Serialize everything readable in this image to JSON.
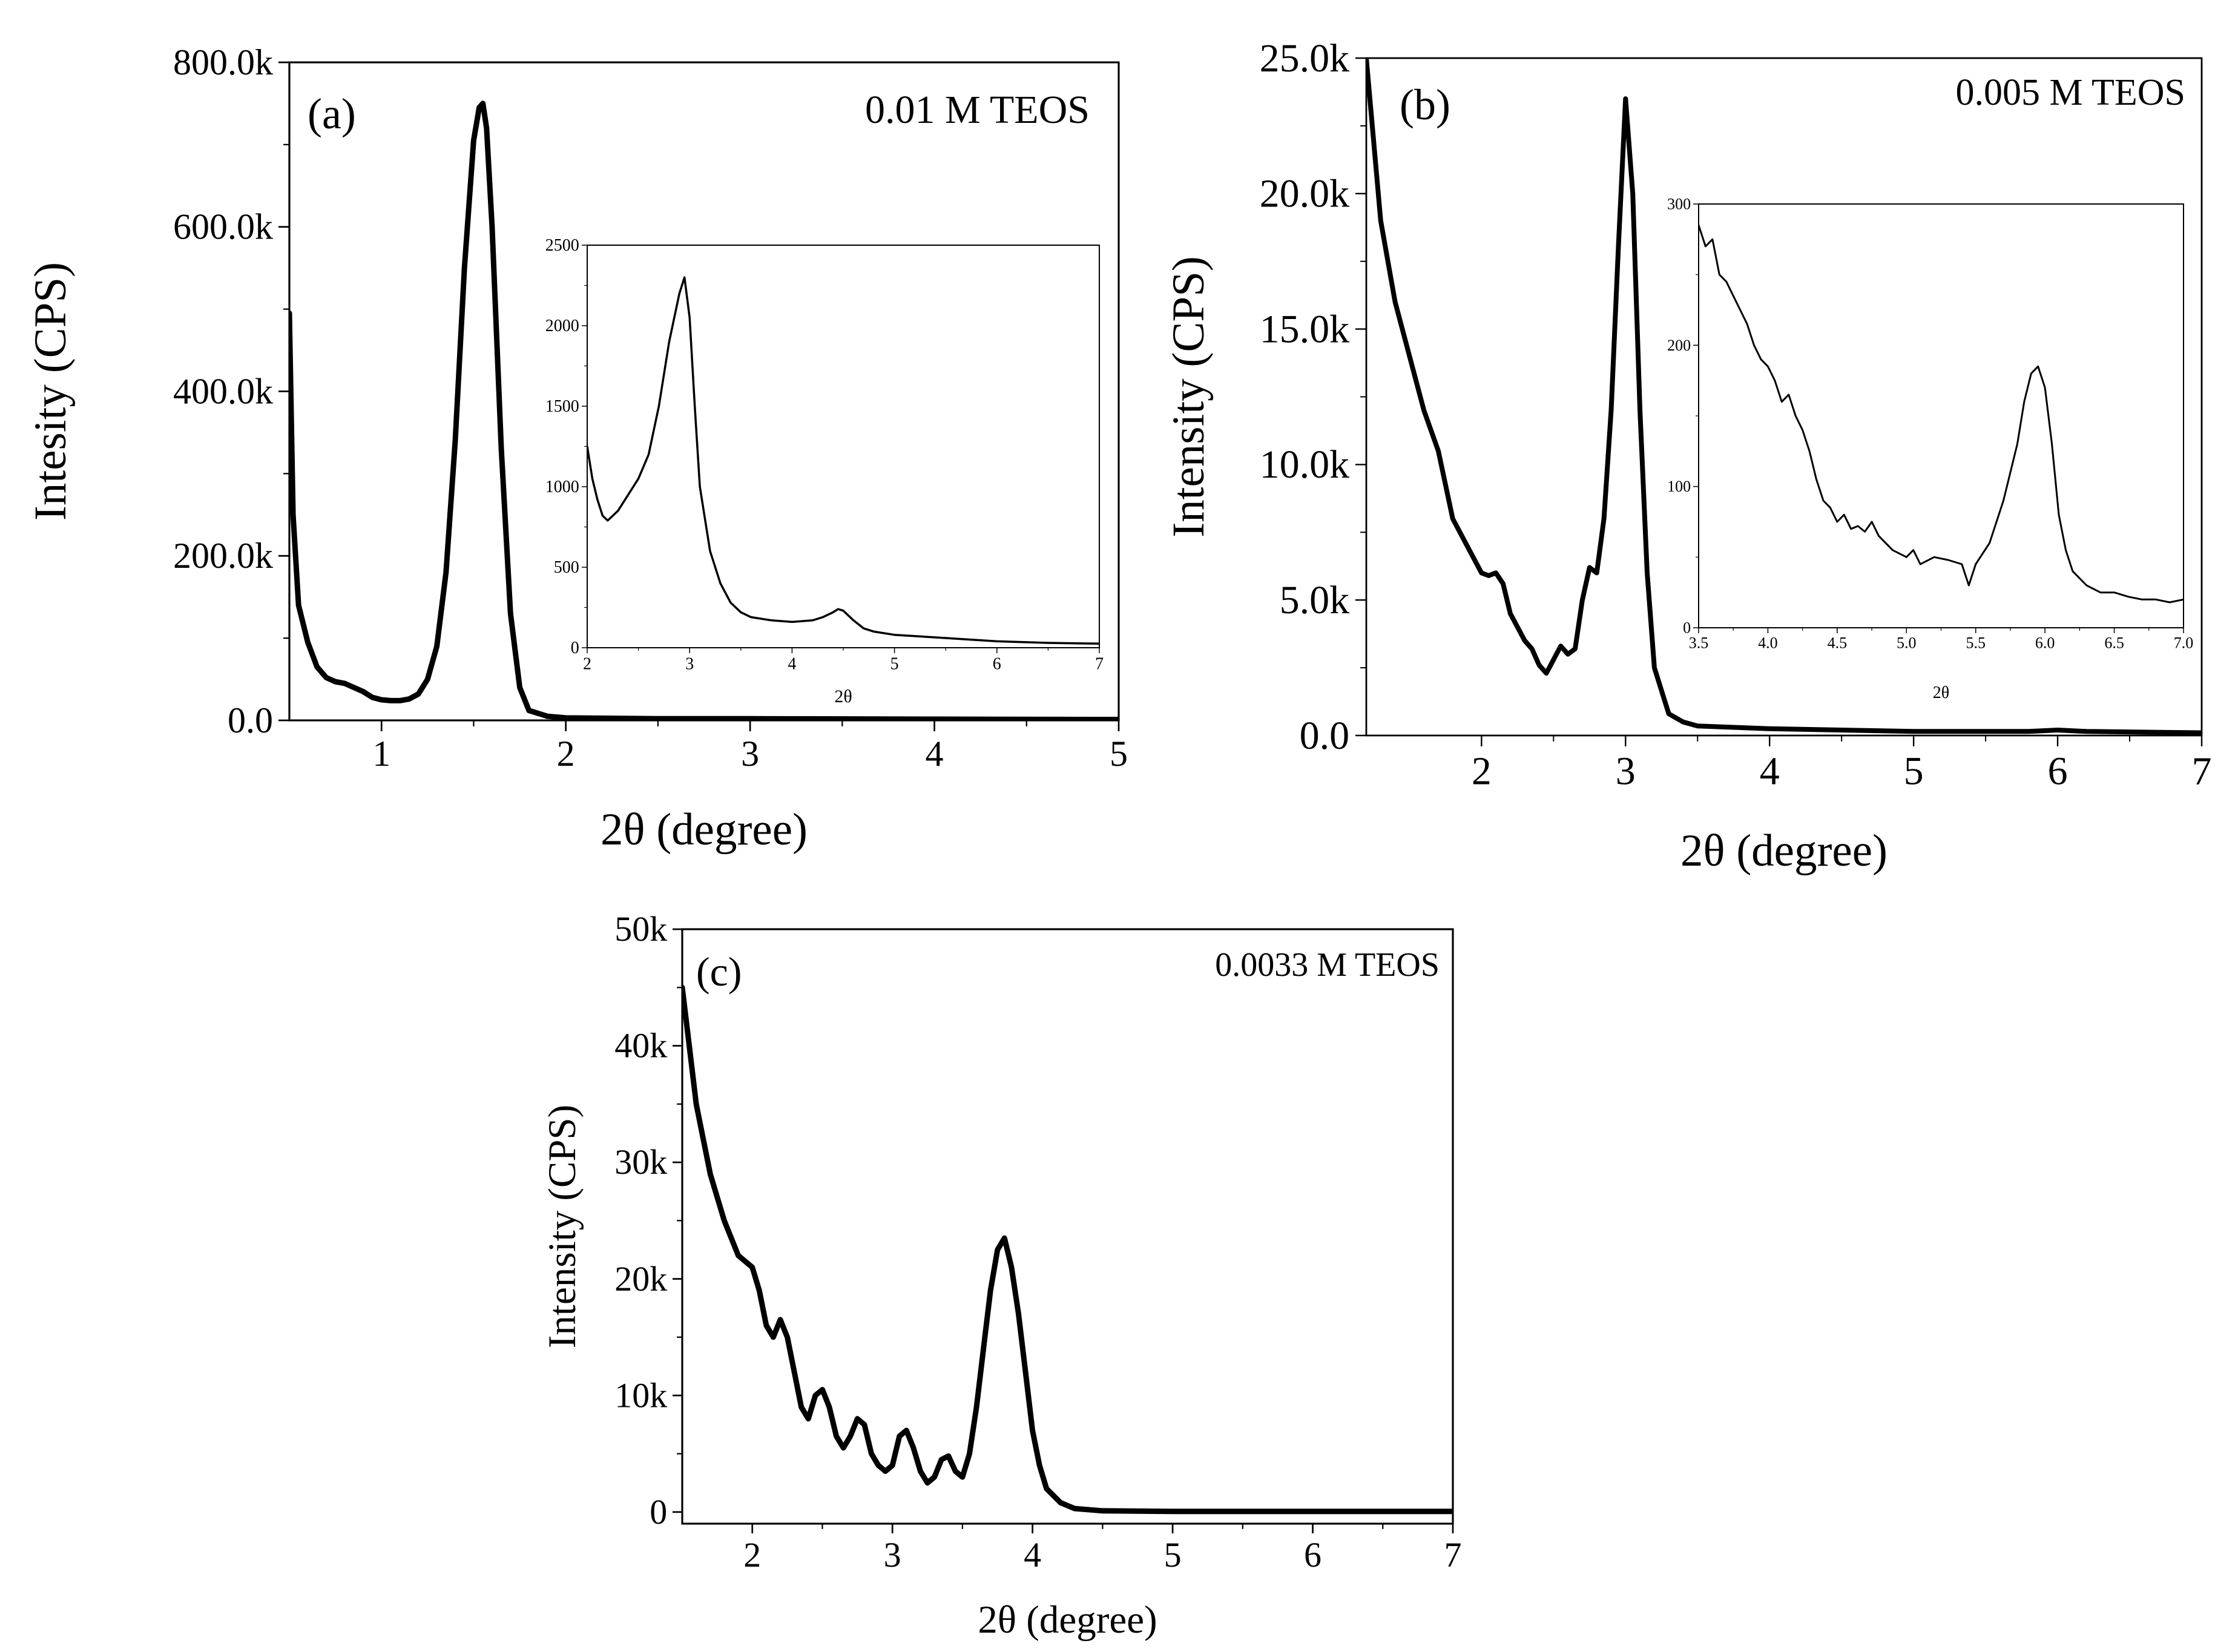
{
  "figure": {
    "colors": {
      "line": "#000000",
      "background": "#ffffff"
    }
  },
  "chart_data": [
    {
      "id": "a",
      "type": "line",
      "panel_label": "(a)",
      "annotation": "0.01 M TEOS",
      "xlabel": "2θ (degree)",
      "ylabel": "Intesity (CPS)",
      "xlim": [
        0.5,
        5
      ],
      "ylim": [
        0,
        800000
      ],
      "xticks": [
        1,
        2,
        3,
        4,
        5
      ],
      "xtick_labels": [
        "1",
        "2",
        "3",
        "4",
        "5"
      ],
      "yticks": [
        0,
        200000,
        400000,
        600000,
        800000
      ],
      "ytick_labels": [
        "0.0",
        "200.0k",
        "400.0k",
        "600.0k",
        "800.0k"
      ],
      "series": [
        {
          "name": "0.01 M TEOS",
          "x": [
            0.5,
            0.52,
            0.55,
            0.6,
            0.65,
            0.7,
            0.75,
            0.8,
            0.85,
            0.9,
            0.95,
            1.0,
            1.05,
            1.1,
            1.15,
            1.2,
            1.25,
            1.3,
            1.35,
            1.4,
            1.45,
            1.5,
            1.53,
            1.55,
            1.57,
            1.6,
            1.65,
            1.7,
            1.75,
            1.8,
            1.9,
            2.0,
            2.5,
            3.0,
            4.0,
            5.0
          ],
          "y": [
            495000,
            250000,
            140000,
            95000,
            65000,
            52000,
            47000,
            45000,
            40000,
            35000,
            28000,
            25000,
            24000,
            24000,
            26000,
            32000,
            50000,
            90000,
            180000,
            340000,
            550000,
            705000,
            745000,
            750000,
            720000,
            600000,
            330000,
            130000,
            40000,
            12000,
            5000,
            3000,
            2000,
            2000,
            1500,
            1000
          ]
        }
      ],
      "inset": {
        "xlabel": "2θ",
        "ylabel": "",
        "xlim": [
          2,
          7
        ],
        "ylim": [
          0,
          2500
        ],
        "xticks": [
          2,
          3,
          4,
          5,
          6,
          7
        ],
        "xtick_labels": [
          "2",
          "3",
          "4",
          "5",
          "6",
          "7"
        ],
        "yticks": [
          0,
          500,
          1000,
          1500,
          2000,
          2500
        ],
        "ytick_labels": [
          "0",
          "500",
          "1000",
          "1500",
          "2000",
          "2500"
        ],
        "series": [
          {
            "name": "inset",
            "x": [
              2.0,
              2.05,
              2.1,
              2.15,
              2.2,
              2.3,
              2.4,
              2.5,
              2.6,
              2.7,
              2.8,
              2.9,
              2.95,
              3.0,
              3.05,
              3.1,
              3.2,
              3.3,
              3.4,
              3.5,
              3.6,
              3.8,
              4.0,
              4.2,
              4.3,
              4.4,
              4.45,
              4.5,
              4.6,
              4.7,
              4.8,
              5.0,
              5.5,
              6.0,
              6.5,
              7.0
            ],
            "y": [
              1250,
              1050,
              920,
              820,
              790,
              850,
              950,
              1050,
              1200,
              1500,
              1900,
              2200,
              2300,
              2050,
              1500,
              1000,
              600,
              400,
              280,
              220,
              190,
              170,
              160,
              170,
              190,
              220,
              240,
              230,
              170,
              120,
              100,
              80,
              60,
              40,
              30,
              25
            ]
          }
        ]
      }
    },
    {
      "id": "b",
      "type": "line",
      "panel_label": "(b)",
      "annotation": "0.005 M TEOS",
      "xlabel": "2θ (degree)",
      "ylabel": "Intensity (CPS)",
      "xlim": [
        1.2,
        7
      ],
      "ylim": [
        0,
        25000
      ],
      "xticks": [
        2,
        3,
        4,
        5,
        6,
        7
      ],
      "xtick_labels": [
        "2",
        "3",
        "4",
        "5",
        "6",
        "7"
      ],
      "yticks": [
        0,
        5000,
        10000,
        15000,
        20000,
        25000
      ],
      "ytick_labels": [
        "0.0",
        "5.0k",
        "10.0k",
        "15.0k",
        "20.0k",
        "25.0k"
      ],
      "series": [
        {
          "name": "0.005 M TEOS",
          "x": [
            1.2,
            1.25,
            1.3,
            1.4,
            1.5,
            1.6,
            1.7,
            1.8,
            1.9,
            2.0,
            2.05,
            2.1,
            2.15,
            2.2,
            2.3,
            2.35,
            2.4,
            2.45,
            2.5,
            2.55,
            2.6,
            2.65,
            2.7,
            2.75,
            2.8,
            2.85,
            2.9,
            2.95,
            3.0,
            3.05,
            3.1,
            3.15,
            3.2,
            3.3,
            3.4,
            3.5,
            4.0,
            5.0,
            5.8,
            6.0,
            6.2,
            7.0
          ],
          "y": [
            25000,
            22000,
            19000,
            16000,
            14000,
            12000,
            10500,
            8000,
            7000,
            6000,
            5900,
            6000,
            5600,
            4500,
            3500,
            3200,
            2600,
            2300,
            2800,
            3300,
            3000,
            3200,
            5000,
            6200,
            6000,
            8000,
            12000,
            18000,
            23500,
            20000,
            12000,
            6000,
            2500,
            800,
            500,
            350,
            250,
            150,
            150,
            200,
            150,
            100
          ]
        }
      ],
      "inset": {
        "xlabel": "2θ",
        "ylabel": "",
        "xlim": [
          3.5,
          7.0
        ],
        "ylim": [
          0,
          300
        ],
        "xticks": [
          3.5,
          4.0,
          4.5,
          5.0,
          5.5,
          6.0,
          6.5,
          7.0
        ],
        "xtick_labels": [
          "3.5",
          "4.0",
          "4.5",
          "5.0",
          "5.5",
          "6.0",
          "6.5",
          "7.0"
        ],
        "yticks": [
          0,
          100,
          200,
          300
        ],
        "ytick_labels": [
          "0",
          "100",
          "200",
          "300"
        ],
        "series": [
          {
            "name": "inset",
            "x": [
              3.5,
              3.55,
              3.6,
              3.65,
              3.7,
              3.75,
              3.8,
              3.85,
              3.9,
              3.95,
              4.0,
              4.05,
              4.1,
              4.15,
              4.2,
              4.25,
              4.3,
              4.35,
              4.4,
              4.45,
              4.5,
              4.55,
              4.6,
              4.65,
              4.7,
              4.75,
              4.8,
              4.9,
              5.0,
              5.05,
              5.1,
              5.2,
              5.3,
              5.4,
              5.45,
              5.5,
              5.6,
              5.7,
              5.8,
              5.85,
              5.9,
              5.95,
              6.0,
              6.05,
              6.1,
              6.15,
              6.2,
              6.3,
              6.4,
              6.5,
              6.6,
              6.7,
              6.8,
              6.9,
              7.0
            ],
            "y": [
              285,
              270,
              275,
              250,
              245,
              235,
              225,
              215,
              200,
              190,
              185,
              175,
              160,
              165,
              150,
              140,
              125,
              105,
              90,
              85,
              75,
              80,
              70,
              72,
              68,
              75,
              65,
              55,
              50,
              55,
              45,
              50,
              48,
              45,
              30,
              45,
              60,
              90,
              130,
              160,
              180,
              185,
              170,
              130,
              80,
              55,
              40,
              30,
              25,
              25,
              22,
              20,
              20,
              18,
              20
            ]
          }
        ]
      }
    },
    {
      "id": "c",
      "type": "line",
      "panel_label": "(c)",
      "annotation": "0.0033 M TEOS",
      "xlabel": "2θ (degree)",
      "ylabel": "Intensity (CPS)",
      "xlim": [
        1.5,
        7
      ],
      "ylim": [
        -1000,
        50000
      ],
      "xticks": [
        2,
        3,
        4,
        5,
        6,
        7
      ],
      "xtick_labels": [
        "2",
        "3",
        "4",
        "5",
        "6",
        "7"
      ],
      "yticks": [
        0,
        10000,
        20000,
        30000,
        40000,
        50000
      ],
      "ytick_labels": [
        "0",
        "10k",
        "20k",
        "30k",
        "40k",
        "50k"
      ],
      "series": [
        {
          "name": "0.0033 M TEOS",
          "x": [
            1.5,
            1.55,
            1.6,
            1.65,
            1.7,
            1.8,
            1.9,
            2.0,
            2.05,
            2.1,
            2.15,
            2.2,
            2.25,
            2.3,
            2.35,
            2.4,
            2.45,
            2.5,
            2.55,
            2.6,
            2.65,
            2.7,
            2.75,
            2.8,
            2.85,
            2.9,
            2.95,
            3.0,
            3.05,
            3.1,
            3.15,
            3.2,
            3.25,
            3.3,
            3.35,
            3.4,
            3.45,
            3.5,
            3.55,
            3.6,
            3.65,
            3.7,
            3.75,
            3.8,
            3.85,
            3.9,
            3.95,
            4.0,
            4.05,
            4.1,
            4.2,
            4.3,
            4.5,
            5.0,
            6.0,
            7.0
          ],
          "y": [
            45000,
            40000,
            35000,
            32000,
            29000,
            25000,
            22000,
            21000,
            19000,
            16000,
            15000,
            16500,
            15000,
            12000,
            9000,
            8000,
            10000,
            10500,
            9000,
            6500,
            5500,
            6500,
            8000,
            7500,
            5000,
            4000,
            3500,
            4000,
            6500,
            7000,
            5500,
            3500,
            2500,
            3000,
            4500,
            4800,
            3500,
            3000,
            5000,
            9000,
            14000,
            19000,
            22500,
            23500,
            21000,
            17000,
            12000,
            7000,
            4000,
            2000,
            800,
            300,
            100,
            50,
            50,
            50
          ]
        }
      ]
    }
  ]
}
